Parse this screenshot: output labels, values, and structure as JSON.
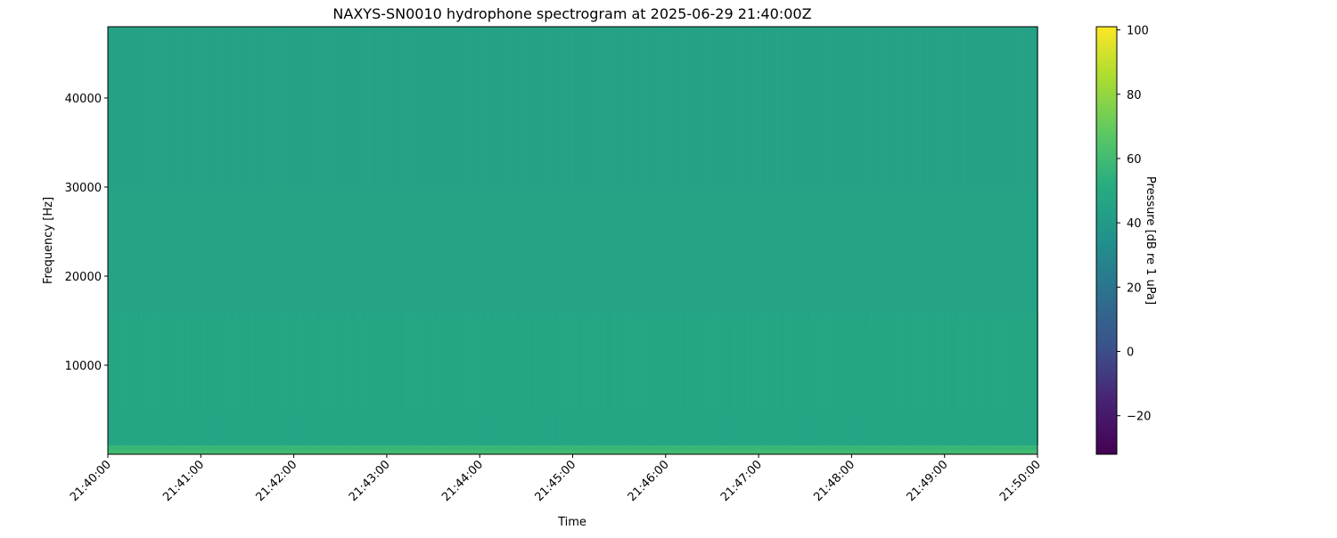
{
  "chart_data": {
    "type": "heatmap",
    "title": "NAXYS-SN0010 hydrophone spectrogram at 2025-06-29 21:40:00Z",
    "xlabel": "Time",
    "ylabel": "Frequency [Hz]",
    "x_ticks": [
      "21:40:00",
      "21:41:00",
      "21:42:00",
      "21:43:00",
      "21:44:00",
      "21:45:00",
      "21:46:00",
      "21:47:00",
      "21:48:00",
      "21:49:00",
      "21:50:00"
    ],
    "xlim": [
      "21:40:00",
      "21:50:00"
    ],
    "y_ticks": [
      10000,
      20000,
      30000,
      40000
    ],
    "ylim": [
      0,
      48000
    ],
    "colormap": "viridis",
    "colorbar": {
      "label": "Pressure [dB re 1 uPa]",
      "ticks": [
        -20,
        0,
        20,
        40,
        60,
        80,
        100
      ],
      "range": [
        -32,
        101
      ]
    },
    "bands": [
      {
        "freq_range": [
          0,
          500
        ],
        "level_db": 60
      },
      {
        "freq_range": [
          500,
          1000
        ],
        "level_db": 57
      },
      {
        "freq_range": [
          1000,
          5000
        ],
        "level_db": 47
      },
      {
        "freq_range": [
          5000,
          15000
        ],
        "level_db": 48
      },
      {
        "freq_range": [
          15000,
          30000
        ],
        "level_db": 46
      },
      {
        "freq_range": [
          30000,
          48000
        ],
        "level_db": 45
      }
    ]
  }
}
